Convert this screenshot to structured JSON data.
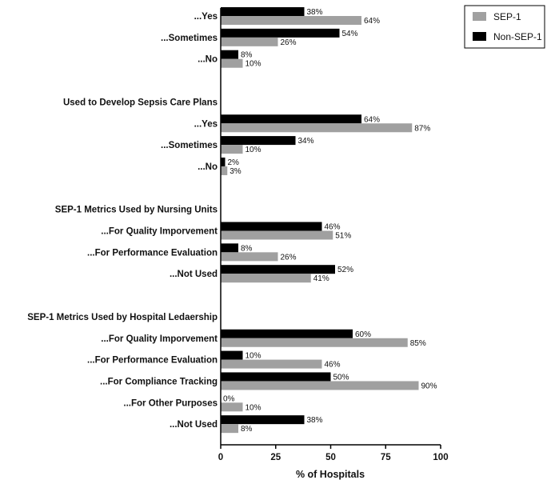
{
  "chart_data": {
    "type": "bar",
    "orientation": "horizontal",
    "xlabel": "% of Hospitals",
    "xlim": [
      0,
      100
    ],
    "xticks": [
      "0",
      "25",
      "50",
      "75",
      "100"
    ],
    "legend": {
      "placement": "top-right",
      "items": [
        {
          "name": "SEP-1",
          "color": "#a0a0a0"
        },
        {
          "name": "Non-SEP-1",
          "color": "#000000"
        }
      ]
    },
    "rows": [
      {
        "kind": "item",
        "label": "...Yes",
        "non_sep1": 38,
        "sep1": 64
      },
      {
        "kind": "item",
        "label": "...Sometimes",
        "non_sep1": 54,
        "sep1": 26
      },
      {
        "kind": "item",
        "label": "...No",
        "non_sep1": 8,
        "sep1": 10
      },
      {
        "kind": "gap"
      },
      {
        "kind": "group",
        "label": "Used to Develop Sepsis Care Plans"
      },
      {
        "kind": "item",
        "label": "...Yes",
        "non_sep1": 64,
        "sep1": 87
      },
      {
        "kind": "item",
        "label": "...Sometimes",
        "non_sep1": 34,
        "sep1": 10
      },
      {
        "kind": "item",
        "label": "...No",
        "non_sep1": 2,
        "sep1": 3
      },
      {
        "kind": "gap"
      },
      {
        "kind": "group",
        "label": "SEP-1 Metrics Used by Nursing Units"
      },
      {
        "kind": "item",
        "label": "...For Quality Imporvement",
        "non_sep1": 46,
        "sep1": 51
      },
      {
        "kind": "item",
        "label": "...For Performance Evaluation",
        "non_sep1": 8,
        "sep1": 26
      },
      {
        "kind": "item",
        "label": "...Not Used",
        "non_sep1": 52,
        "sep1": 41
      },
      {
        "kind": "gap"
      },
      {
        "kind": "group",
        "label": "SEP-1 Metrics Used by Hospital Ledaership"
      },
      {
        "kind": "item",
        "label": "...For Quality Imporvement",
        "non_sep1": 60,
        "sep1": 85
      },
      {
        "kind": "item",
        "label": "...For Performance Evaluation",
        "non_sep1": 10,
        "sep1": 46
      },
      {
        "kind": "item",
        "label": "...For Compliance Tracking",
        "non_sep1": 50,
        "sep1": 90
      },
      {
        "kind": "item",
        "label": "...For Other Purposes",
        "non_sep1": 0,
        "sep1": 10
      },
      {
        "kind": "item",
        "label": "...Not Used",
        "non_sep1": 38,
        "sep1": 8
      }
    ]
  }
}
